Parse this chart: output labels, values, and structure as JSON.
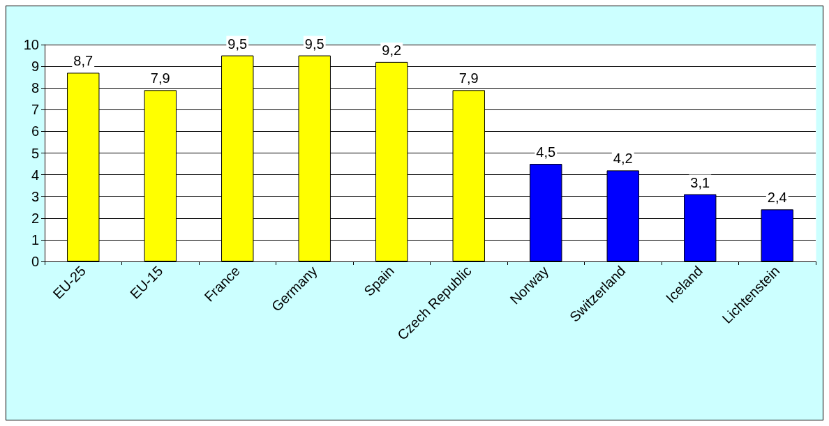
{
  "chart_data": {
    "type": "bar",
    "categories": [
      "EU-25",
      "EU-15",
      "France",
      "Germany",
      "Spain",
      "Czech Republic",
      "Norway",
      "Switzerland",
      "Iceland",
      "Lichtenstein"
    ],
    "values": [
      8.7,
      7.9,
      9.5,
      9.5,
      9.2,
      7.9,
      4.5,
      4.2,
      3.1,
      2.4
    ],
    "value_labels": [
      "8,7",
      "7,9",
      "9,5",
      "9,5",
      "9,2",
      "7,9",
      "4,5",
      "4,2",
      "3,1",
      "2,4"
    ],
    "colors": [
      "#ffff00",
      "#ffff00",
      "#ffff00",
      "#ffff00",
      "#ffff00",
      "#ffff00",
      "#0000ff",
      "#0000ff",
      "#0000ff",
      "#0000ff"
    ],
    "ylim": [
      0,
      10
    ],
    "yticks": [
      0,
      1,
      2,
      3,
      4,
      5,
      6,
      7,
      8,
      9,
      10
    ],
    "grid": "y"
  }
}
